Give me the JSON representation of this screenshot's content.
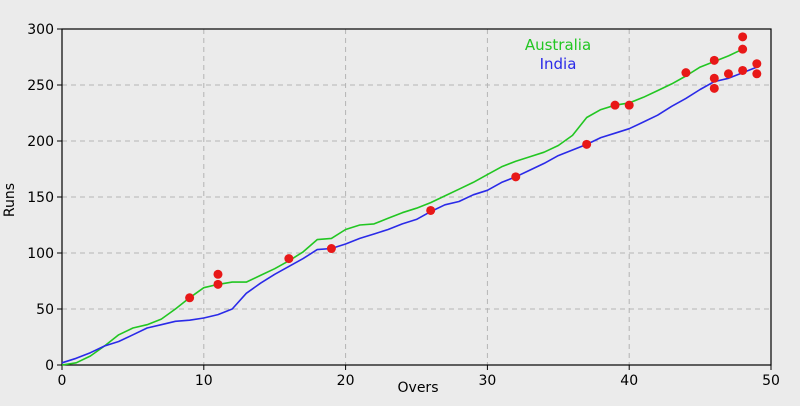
{
  "chart_data": {
    "type": "line",
    "title": "",
    "xlabel": "Overs",
    "ylabel": "Runs",
    "xlim": [
      0,
      50
    ],
    "ylim": [
      0,
      300
    ],
    "xticks": [
      0,
      10,
      20,
      30,
      40,
      50
    ],
    "yticks": [
      0,
      50,
      100,
      150,
      200,
      250,
      300
    ],
    "grid": true,
    "legend_position": "top-center",
    "background": "#ebebeb",
    "series": [
      {
        "name": "Australia",
        "color": "#22c622",
        "x": [
          0,
          1,
          2,
          3,
          4,
          5,
          6,
          7,
          8,
          9,
          10,
          11,
          12,
          13,
          14,
          15,
          16,
          17,
          18,
          19,
          20,
          21,
          22,
          23,
          24,
          25,
          26,
          27,
          28,
          29,
          30,
          31,
          32,
          33,
          34,
          35,
          36,
          37,
          38,
          39,
          40,
          41,
          42,
          43,
          44,
          45,
          46,
          47,
          48
        ],
        "y": [
          0,
          2,
          8,
          17,
          27,
          33,
          36,
          41,
          50,
          60,
          69,
          72,
          74,
          74,
          80,
          86,
          93,
          101,
          112,
          113,
          121,
          125,
          126,
          131,
          136,
          140,
          145,
          151,
          157,
          163,
          170,
          177,
          182,
          186,
          190,
          196,
          205,
          221,
          228,
          232,
          234,
          239,
          245,
          251,
          258,
          266,
          271,
          276,
          282
        ],
        "wickets": [
          {
            "x": 9,
            "y": 60
          },
          {
            "x": 11,
            "y": 72
          },
          {
            "x": 11,
            "y": 81
          },
          {
            "x": 39,
            "y": 232
          },
          {
            "x": 40,
            "y": 232
          },
          {
            "x": 44,
            "y": 261
          },
          {
            "x": 46,
            "y": 272
          },
          {
            "x": 48,
            "y": 282
          },
          {
            "x": 48,
            "y": 293
          }
        ]
      },
      {
        "name": "India",
        "color": "#2a2ae8",
        "x": [
          0,
          1,
          2,
          3,
          4,
          5,
          6,
          7,
          8,
          9,
          10,
          11,
          12,
          13,
          14,
          15,
          16,
          17,
          18,
          19,
          20,
          21,
          22,
          23,
          24,
          25,
          26,
          27,
          28,
          29,
          30,
          31,
          32,
          33,
          34,
          35,
          36,
          37,
          38,
          39,
          40,
          41,
          42,
          43,
          44,
          45,
          46,
          47,
          48,
          49
        ],
        "y": [
          2,
          6,
          11,
          17,
          21,
          27,
          33,
          36,
          39,
          40,
          42,
          45,
          50,
          64,
          73,
          81,
          88,
          95,
          103,
          104,
          108,
          113,
          117,
          121,
          126,
          130,
          137,
          143,
          146,
          152,
          156,
          163,
          168,
          174,
          180,
          187,
          192,
          197,
          203,
          207,
          211,
          217,
          223,
          231,
          238,
          246,
          253,
          256,
          261,
          266
        ],
        "wickets": [
          {
            "x": 16,
            "y": 95
          },
          {
            "x": 19,
            "y": 104
          },
          {
            "x": 26,
            "y": 138
          },
          {
            "x": 32,
            "y": 168
          },
          {
            "x": 37,
            "y": 197
          },
          {
            "x": 46,
            "y": 247
          },
          {
            "x": 46,
            "y": 256
          },
          {
            "x": 47,
            "y": 260
          },
          {
            "x": 48,
            "y": 263
          },
          {
            "x": 49,
            "y": 260
          },
          {
            "x": 49,
            "y": 269
          }
        ]
      }
    ],
    "wicket_marker_color": "#e81818"
  }
}
